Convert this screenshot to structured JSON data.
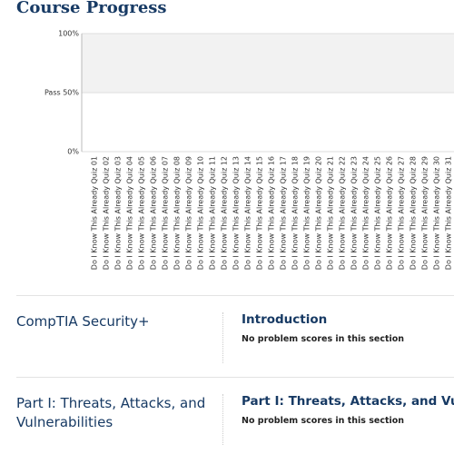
{
  "header": {
    "title": "Course Progress"
  },
  "chart_data": {
    "type": "bar",
    "categories": [
      "Do I Know This Already Quiz 01",
      "Do I Know This Already Quiz 02",
      "Do I Know This Already Quiz 03",
      "Do I Know This Already Quiz 04",
      "Do I Know This Already Quiz 05",
      "Do I Know This Already Quiz 06",
      "Do I Know This Already Quiz 07",
      "Do I Know This Already Quiz 08",
      "Do I Know This Already Quiz 09",
      "Do I Know This Already Quiz 10",
      "Do I Know This Already Quiz 11",
      "Do I Know This Already Quiz 12",
      "Do I Know This Already Quiz 13",
      "Do I Know This Already Quiz 14",
      "Do I Know This Already Quiz 15",
      "Do I Know This Already Quiz 16",
      "Do I Know This Already Quiz 17",
      "Do I Know This Already Quiz 18",
      "Do I Know This Already Quiz 19",
      "Do I Know This Already Quiz 20",
      "Do I Know This Already Quiz 21",
      "Do I Know This Already Quiz 22",
      "Do I Know This Already Quiz 23",
      "Do I Know This Already Quiz 24",
      "Do I Know This Already Quiz 25",
      "Do I Know This Already Quiz 26",
      "Do I Know This Already Quiz 27",
      "Do I Know This Already Quiz 28",
      "Do I Know This Already Quiz 29",
      "Do I Know This Already Quiz 30",
      "Do I Know This Already Quiz 31"
    ],
    "ylim": [
      0,
      100
    ],
    "yticks": [
      {
        "value": 0,
        "label": "0%"
      },
      {
        "value": 50,
        "label": "Pass 50%"
      },
      {
        "value": 100,
        "label": "100%"
      }
    ],
    "grid": true
  },
  "sections": [
    {
      "name": "CompTIA Security+",
      "items": [
        {
          "title": "Introduction",
          "note": "No problem scores in this section"
        }
      ]
    },
    {
      "name": "Part I: Threats, Attacks, and Vulnerabilities",
      "items": [
        {
          "title": "Part I: Threats, Attacks, and Vulnerabilities",
          "note": "No problem scores in this section"
        }
      ]
    }
  ]
}
